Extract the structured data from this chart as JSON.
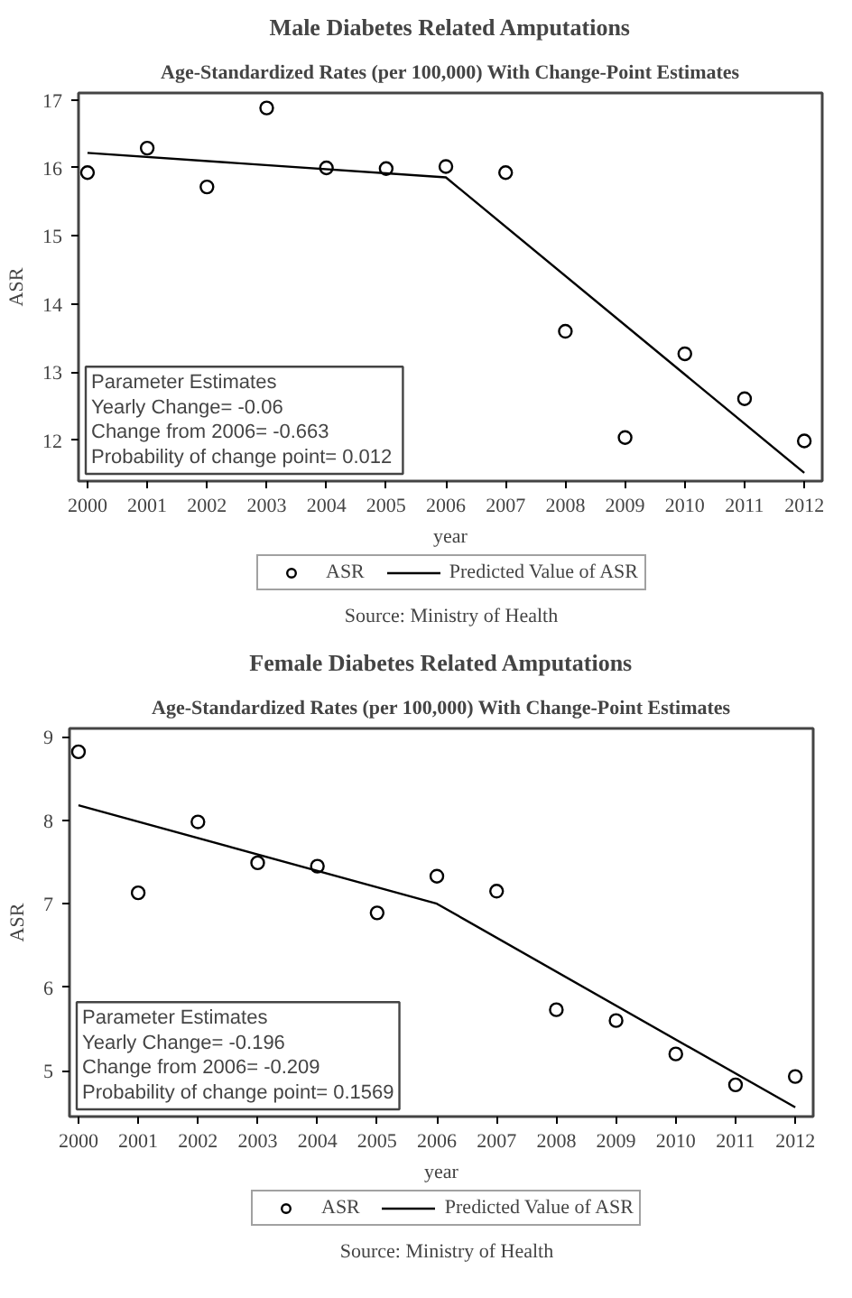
{
  "chart_data": [
    {
      "type": "scatter",
      "title": "Male Diabetes Related Amputations",
      "subtitle": "Age-Standardized Rates (per 100,000) With Change-Point Estimates",
      "xlabel": "year",
      "ylabel": "ASR",
      "x": [
        2000,
        2001,
        2002,
        2003,
        2004,
        2005,
        2006,
        2007,
        2008,
        2009,
        2010,
        2011,
        2012
      ],
      "series": [
        {
          "name": "ASR",
          "marker": "circle",
          "color": "#000000",
          "values": [
            15.93,
            16.29,
            15.72,
            16.88,
            16.0,
            15.99,
            16.02,
            15.93,
            13.6,
            12.04,
            13.27,
            12.61,
            11.99
          ]
        },
        {
          "name": "Predicted Value of ASR",
          "type": "line",
          "line_style": "solid",
          "color": "#000000",
          "x": [
            2000,
            2006,
            2012
          ],
          "values": [
            16.22,
            15.86,
            11.52
          ]
        }
      ],
      "xlim": [
        1999.85,
        2012.3
      ],
      "ylim": [
        11.4,
        17.1
      ],
      "xticks": [
        2000,
        2001,
        2002,
        2003,
        2004,
        2005,
        2006,
        2007,
        2008,
        2009,
        2010,
        2011,
        2012
      ],
      "yticks": [
        12,
        13,
        14,
        15,
        16,
        17
      ],
      "grid": false,
      "legend": "bottom",
      "annotations": [
        "Parameter Estimates\nYearly Change=  -0.06\nChange from 2006= -0.663\nProbability of change point=  0.012",
        "Source: Ministry of Health"
      ]
    },
    {
      "type": "scatter",
      "title": "Female Diabetes Related Amputations",
      "subtitle": "Age-Standardized Rates (per 100,000) With Change-Point Estimates",
      "xlabel": "year",
      "ylabel": "ASR",
      "x": [
        2000,
        2001,
        2002,
        2003,
        2004,
        2005,
        2006,
        2007,
        2008,
        2009,
        2010,
        2011,
        2012
      ],
      "series": [
        {
          "name": "ASR",
          "marker": "circle",
          "color": "#000000",
          "values": [
            8.82,
            7.13,
            7.98,
            7.49,
            7.45,
            6.89,
            7.33,
            7.15,
            5.73,
            5.6,
            5.2,
            4.83,
            4.93
          ]
        },
        {
          "name": "Predicted Value of ASR",
          "type": "line",
          "line_style": "solid",
          "color": "#000000",
          "x": [
            2000,
            2006,
            2012
          ],
          "values": [
            8.18,
            7.0,
            4.56
          ]
        }
      ],
      "xlim": [
        1999.85,
        2012.3
      ],
      "ylim": [
        4.45,
        9.1
      ],
      "xticks": [
        2000,
        2001,
        2002,
        2003,
        2004,
        2005,
        2006,
        2007,
        2008,
        2009,
        2010,
        2011,
        2012
      ],
      "yticks": [
        5,
        6,
        7,
        8,
        9
      ],
      "grid": false,
      "legend": "bottom",
      "annotations": [
        "Parameter Estimates\nYearly Change= -0.196\nChange from 2006= -0.209\nProbability of change point= 0.1569",
        "Source: Ministry of Health"
      ]
    }
  ]
}
